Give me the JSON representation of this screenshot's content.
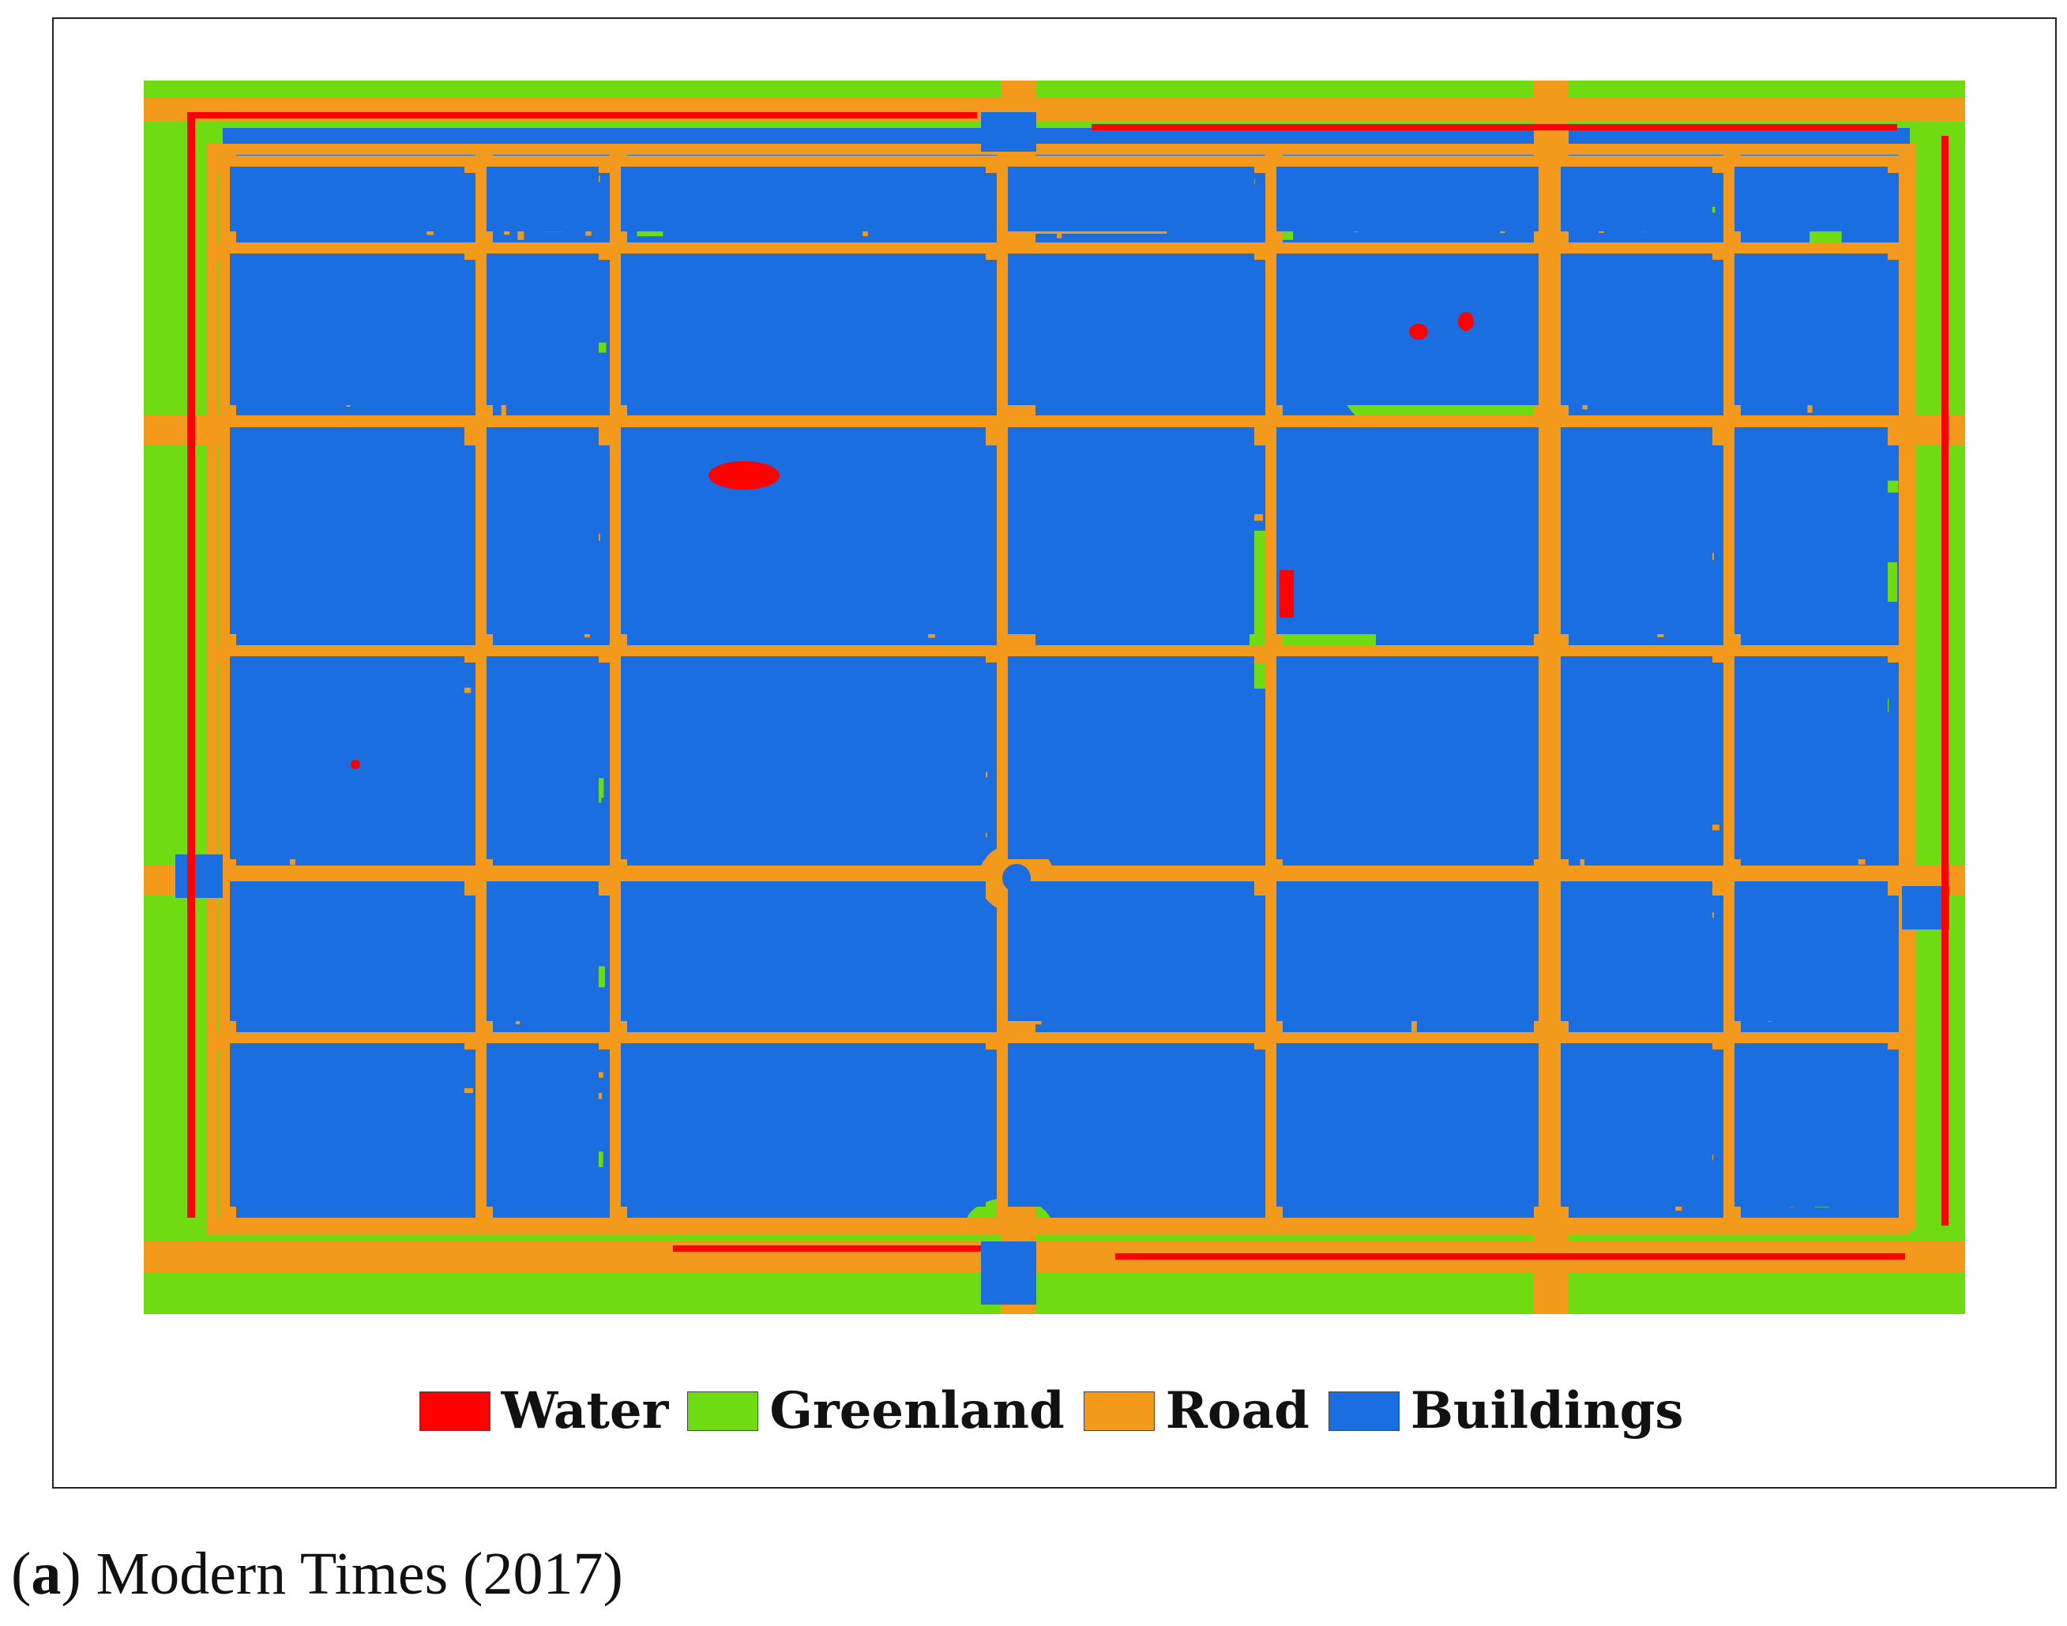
{
  "legend": {
    "items": [
      {
        "label": "Water",
        "color": "#ff0000"
      },
      {
        "label": "Greenland",
        "color": "#6fdc11"
      },
      {
        "label": "Road",
        "color": "#f39a1c"
      },
      {
        "label": "Buildings",
        "color": "#1a6ee0"
      }
    ]
  },
  "caption": {
    "letter": "a",
    "open": "(",
    "close": ")",
    "text": " Modern Times (2017)"
  },
  "colors": {
    "water": "#ff0000",
    "greenland": "#6fdc11",
    "road": "#f39a1c",
    "buildings": "#1a6ee0"
  }
}
